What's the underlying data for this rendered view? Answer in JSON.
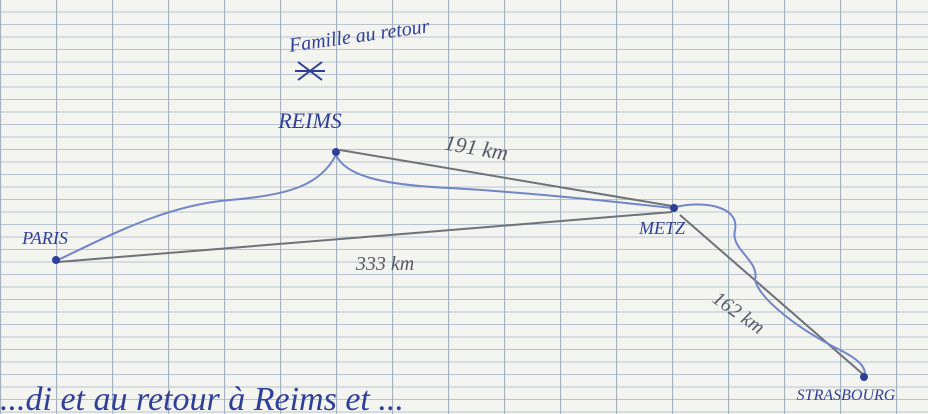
{
  "title": "Famille au retour",
  "cities": [
    {
      "label": "REIMS"
    },
    {
      "label": "PARIS"
    },
    {
      "label": "METZ"
    },
    {
      "label": "STRASBOURG"
    }
  ],
  "distances": [
    {
      "label": "191 km"
    },
    {
      "label": "333 km"
    },
    {
      "label": "162 km"
    }
  ],
  "footer": "...di et au retour à Reims et ..."
}
